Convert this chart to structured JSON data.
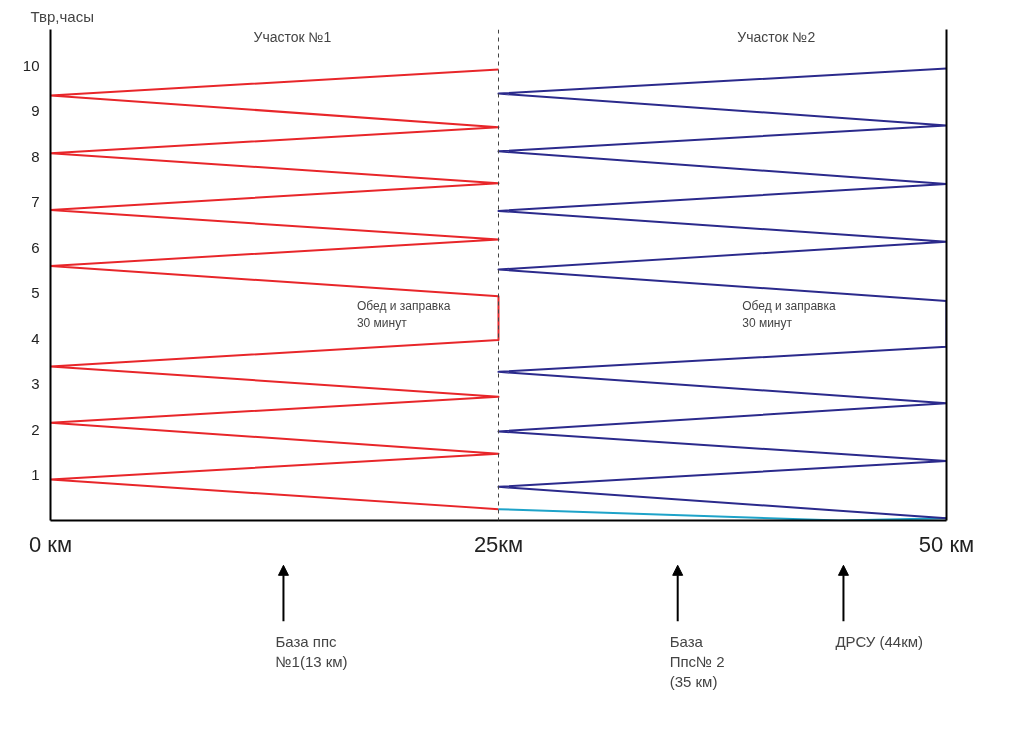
{
  "chart_data": {
    "type": "line",
    "ylabel": "Твр,часы",
    "xlim": [
      0,
      50
    ],
    "ylim": [
      0,
      10.8
    ],
    "xticks": [
      {
        "value": 0,
        "label": "0 км"
      },
      {
        "value": 25,
        "label": "25км"
      },
      {
        "value": 50,
        "label": "50 км"
      }
    ],
    "yticks": [
      1,
      2,
      3,
      4,
      5,
      6,
      7,
      8,
      9,
      10
    ],
    "grid": false,
    "line_style": "solid",
    "marker": "none",
    "series": [
      {
        "color": "#e8262a",
        "x": [
          25,
          0,
          25,
          0,
          25,
          0,
          25,
          25,
          0,
          25,
          0,
          25,
          0,
          25,
          0,
          25
        ],
        "values": [
          0.25,
          0.9,
          1.47,
          2.15,
          2.72,
          3.39,
          3.97,
          4.93,
          5.6,
          6.18,
          6.83,
          7.42,
          8.08,
          8.65,
          9.35,
          9.92
        ]
      },
      {
        "color": "#1ea3c9",
        "x": [
          25,
          44,
          50
        ],
        "values": [
          0.25,
          0,
          0.05
        ]
      },
      {
        "color": "#2b2a8c",
        "x": [
          50,
          25,
          50,
          25,
          50,
          25,
          50,
          50,
          25,
          50,
          25,
          50,
          25,
          50,
          25,
          50
        ],
        "values": [
          0.05,
          0.74,
          1.31,
          1.96,
          2.58,
          3.27,
          3.82,
          4.83,
          5.52,
          6.13,
          6.81,
          7.4,
          8.12,
          8.69,
          9.39,
          9.94
        ]
      }
    ],
    "ref_lines": [
      {
        "axis": "x",
        "value": 25,
        "label": null,
        "line_style": "dashed",
        "color": "#444444"
      }
    ],
    "annotations": [
      "Участок №1",
      "Участок №2",
      "Обед и заправка\n30 минут",
      "Обед и заправка\n30 минут",
      "База ппс\n№1(13 км)",
      "База\nПпс№ 2\n(35 км)",
      "ДРСУ (44км)"
    ]
  }
}
